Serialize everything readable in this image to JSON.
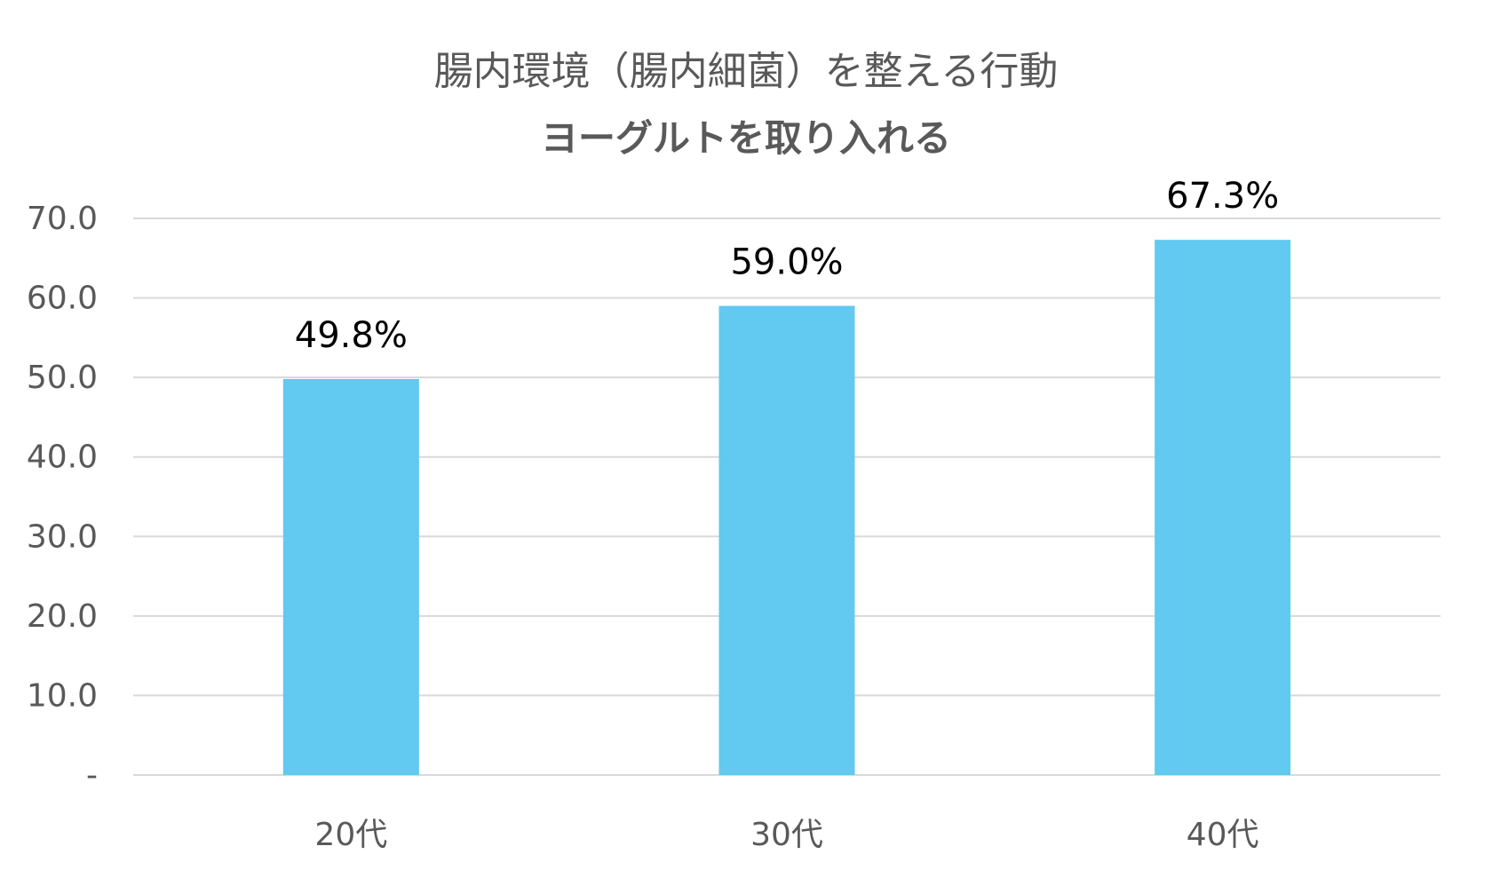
{
  "chart_data": {
    "type": "bar",
    "title": "腸内環境（腸内細菌）を整える行動",
    "subtitle": "ヨーグルトを取り入れる",
    "categories": [
      "20代",
      "30代",
      "40代"
    ],
    "values": [
      49.8,
      59.0,
      67.3
    ],
    "data_labels": [
      "49.8%",
      "59.0%",
      "67.3%"
    ],
    "ylim": [
      0,
      70
    ],
    "y_ticks": [
      0,
      10,
      20,
      30,
      40,
      50,
      60,
      70
    ],
    "y_tick_labels": [
      "-",
      "10.0",
      "20.0",
      "30.0",
      "40.0",
      "50.0",
      "60.0",
      "70.0"
    ],
    "grid": true,
    "legend": false,
    "bar_color": "#62C9F0",
    "grid_color": "#D9D9D9",
    "text_color": "#595959"
  }
}
